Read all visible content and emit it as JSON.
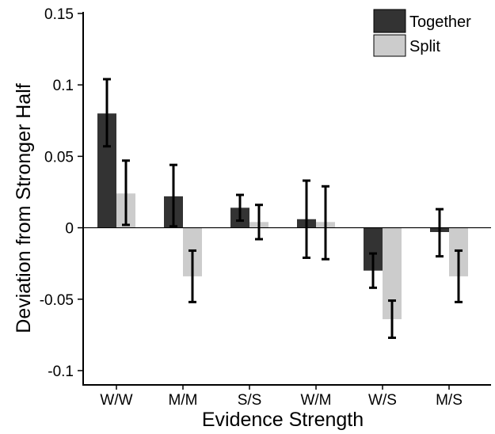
{
  "chart_data": {
    "type": "bar",
    "xlabel": "Evidence Strength",
    "ylabel": "Deviation from Stronger Half",
    "categories": [
      "W/W",
      "M/M",
      "S/S",
      "W/M",
      "W/S",
      "M/S"
    ],
    "ylim": [
      -0.11,
      0.15
    ],
    "yticks": [
      0.15,
      0.1,
      0.05,
      0,
      -0.05,
      -0.1
    ],
    "ytick_labels": [
      "0.15",
      "0.1",
      "0.05",
      "0",
      "-0.05",
      "-0.1"
    ],
    "legend_position": "top-right",
    "grid": false,
    "series": [
      {
        "name": "Together",
        "color": "#333333",
        "values": [
          0.08,
          0.022,
          0.014,
          0.006,
          -0.03,
          -0.003
        ],
        "error_low": [
          0.057,
          0.001,
          0.005,
          -0.021,
          -0.042,
          -0.02
        ],
        "error_high": [
          0.104,
          0.044,
          0.023,
          0.033,
          -0.018,
          0.013
        ]
      },
      {
        "name": "Split",
        "color": "#cccccc",
        "values": [
          0.024,
          -0.034,
          0.004,
          0.004,
          -0.064,
          -0.034
        ],
        "error_low": [
          0.002,
          -0.052,
          -0.008,
          -0.022,
          -0.077,
          -0.052
        ],
        "error_high": [
          0.047,
          -0.016,
          0.016,
          0.029,
          -0.051,
          -0.016
        ]
      }
    ]
  }
}
